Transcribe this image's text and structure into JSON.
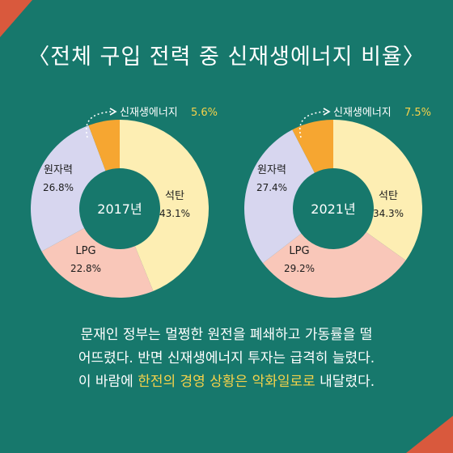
{
  "title": "〈전체 구입 전력 중 신재생에너지 비율〉",
  "colors": {
    "background": "#17786c",
    "coal": "#fdeeb3",
    "lpg": "#f9c7b9",
    "nuclear": "#d7d6ef",
    "renewable": "#f6a631",
    "highlight": "#f6d24a",
    "corner": "#d9593d"
  },
  "chart_data": [
    {
      "type": "pie",
      "center_label": "2017년",
      "renewable_label": "신재생에너지",
      "renewable_value_label": "5.6%",
      "slices": [
        {
          "name": "석탄",
          "value": 43.1,
          "value_label": "43.1%",
          "color": "#fdeeb3"
        },
        {
          "name": "LPG",
          "value": 22.8,
          "value_label": "22.8%",
          "color": "#f9c7b9"
        },
        {
          "name": "원자력",
          "value": 26.8,
          "value_label": "26.8%",
          "color": "#d7d6ef"
        },
        {
          "name": "신재생에너지",
          "value": 5.6,
          "value_label": "5.6%",
          "color": "#f6a631"
        }
      ]
    },
    {
      "type": "pie",
      "center_label": "2021년",
      "renewable_label": "신재생에너지",
      "renewable_value_label": "7.5%",
      "slices": [
        {
          "name": "석탄",
          "value": 34.3,
          "value_label": "34.3%",
          "color": "#fdeeb3"
        },
        {
          "name": "LPG",
          "value": 29.2,
          "value_label": "29.2%",
          "color": "#f9c7b9"
        },
        {
          "name": "원자력",
          "value": 27.4,
          "value_label": "27.4%",
          "color": "#d7d6ef"
        },
        {
          "name": "신재생에너지",
          "value": 7.5,
          "value_label": "7.5%",
          "color": "#f6a631"
        }
      ]
    }
  ],
  "body": {
    "line1_a": "문재인 정부는 멀쩡한 원전을 폐쇄하고 가동률을 떨",
    "line2_a": "어뜨렸다. 반면 신재생에너지 투자는 급격히 늘렸다.",
    "line3_a": "이 바람에 ",
    "line3_hl1": "한전의 경영 상황은",
    "line3_b": " ",
    "line3_hl2": "악화일로로",
    "line3_c": " 내달렸다."
  }
}
